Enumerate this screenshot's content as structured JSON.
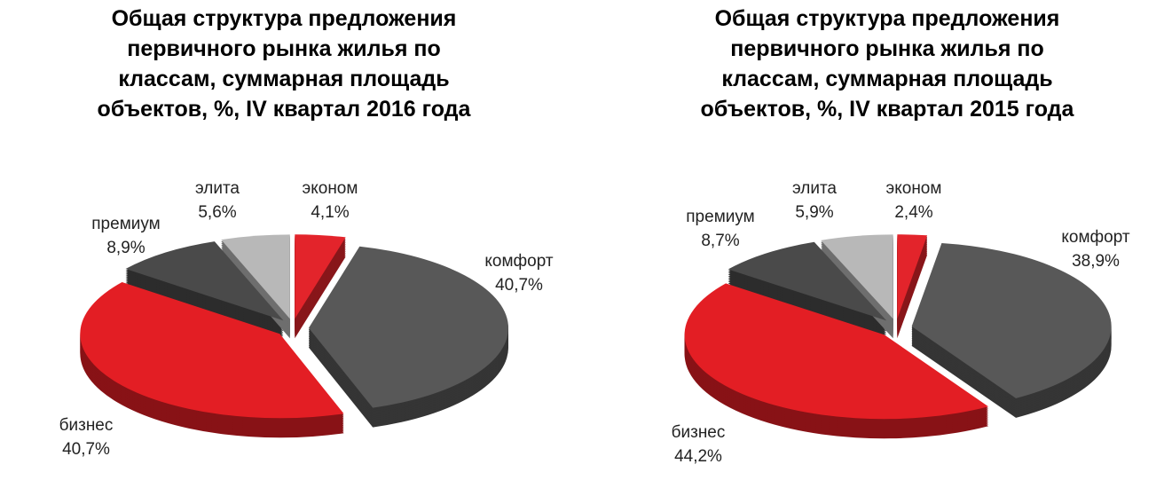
{
  "chart_data": [
    {
      "type": "pie",
      "title": "Общая структура  предложения\nпервичного рынка жилья по\nклассам, суммарная площадь\nобъектов, %, IV  квартал 2016 года",
      "categories": [
        "эконом",
        "комфорт",
        "бизнес",
        "премиум",
        "элита"
      ],
      "values": [
        4.1,
        40.7,
        40.7,
        8.9,
        5.6
      ],
      "value_labels": [
        "4,1%",
        "40,7%",
        "40,7%",
        "8,9%",
        "5,6%"
      ],
      "colors": [
        "#e3242b",
        "#585858",
        "#e31e24",
        "#4a4a4a",
        "#b8b8b8"
      ]
    },
    {
      "type": "pie",
      "title": "Общая структура  предложения\nпервичного рынка жилья по\nклассам, суммарная площадь\nобъектов, %, IV  квартал 2015 года",
      "categories": [
        "эконом",
        "комфорт",
        "бизнес",
        "премиум",
        "элита"
      ],
      "values": [
        2.4,
        38.9,
        44.2,
        8.7,
        5.9
      ],
      "value_labels": [
        "2,4%",
        "38,9%",
        "44,2%",
        "8,7%",
        "5,9%"
      ],
      "colors": [
        "#e3242b",
        "#585858",
        "#e31e24",
        "#4a4a4a",
        "#b8b8b8"
      ]
    }
  ]
}
